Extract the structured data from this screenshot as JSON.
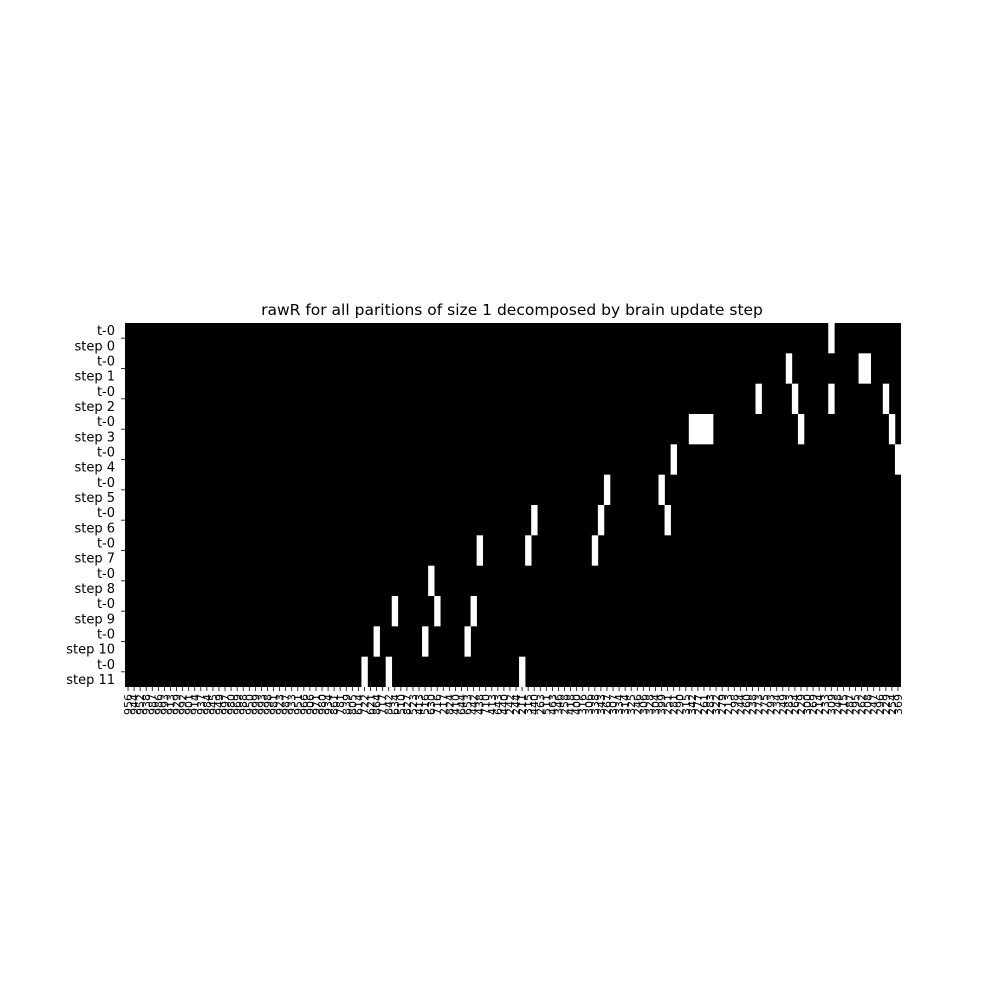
{
  "chart_data": {
    "type": "heatmap",
    "title": "rawR for all paritions of size 1 decomposed by brain update step",
    "colormap": "binary (0 = black, 1 = white)",
    "grid": false,
    "legend": "none",
    "row_labels": [
      "t-0",
      "step 0",
      "t-0",
      "step 1",
      "t-0",
      "step 2",
      "t-0",
      "step 3",
      "t-0",
      "step 4",
      "t-0",
      "step 5",
      "t-0",
      "step 6",
      "t-0",
      "step 7",
      "t-0",
      "step 8",
      "t-0",
      "step 9",
      "t-0",
      "step 10",
      "t-0",
      "step 11"
    ],
    "n_columns": 128,
    "x_tick_labels": [
      "956",
      "944",
      "952",
      "938",
      "987",
      "986",
      "993",
      "913",
      "929",
      "992",
      "901",
      "914",
      "937",
      "984",
      "945",
      "949",
      "997",
      "980",
      "969",
      "988",
      "950",
      "999",
      "993",
      "998",
      "981",
      "923",
      "987",
      "933",
      "951",
      "966",
      "906",
      "971",
      "980",
      "934",
      "861",
      "781",
      "839",
      "805",
      "614",
      "722",
      "621",
      "864",
      "717",
      "842",
      "634",
      "510",
      "827",
      "523",
      "413",
      "516",
      "630",
      "716",
      "217",
      "824",
      "410",
      "644",
      "653",
      "442",
      "438",
      "710",
      "413",
      "643",
      "440",
      "242",
      "244",
      "211",
      "315",
      "440",
      "263",
      "511",
      "463",
      "346",
      "258",
      "418",
      "400",
      "316",
      "306",
      "338",
      "343",
      "267",
      "307",
      "334",
      "314",
      "325",
      "246",
      "306",
      "328",
      "304",
      "399",
      "251",
      "281",
      "290",
      "315",
      "342",
      "277",
      "261",
      "283",
      "322",
      "279",
      "213",
      "298",
      "244",
      "260",
      "238",
      "273",
      "275",
      "293",
      "234",
      "249",
      "283",
      "264",
      "229",
      "300",
      "269",
      "214",
      "233",
      "309",
      "248",
      "215",
      "287",
      "295",
      "262",
      "208",
      "247",
      "296",
      "229",
      "254",
      "369"
    ],
    "white_cells": [
      {
        "row": 1,
        "cols": [
          117
        ]
      },
      {
        "row": 2,
        "cols": [
          110,
          122,
          123
        ]
      },
      {
        "row": 3,
        "cols": [
          105,
          111,
          117,
          126
        ]
      },
      {
        "row": 4,
        "cols": [
          94,
          95,
          96,
          97,
          112,
          127
        ]
      },
      {
        "row": 5,
        "cols": [
          91,
          128
        ]
      },
      {
        "row": 6,
        "cols": [
          80,
          89
        ]
      },
      {
        "row": 7,
        "cols": [
          68,
          79,
          90
        ]
      },
      {
        "row": 8,
        "cols": [
          59,
          67,
          78
        ]
      },
      {
        "row": 9,
        "cols": [
          51
        ]
      },
      {
        "row": 10,
        "cols": [
          45,
          52,
          58
        ]
      },
      {
        "row": 11,
        "cols": [
          42,
          50,
          57
        ]
      },
      {
        "row": 12,
        "cols": [
          40,
          44,
          66
        ]
      }
    ]
  }
}
